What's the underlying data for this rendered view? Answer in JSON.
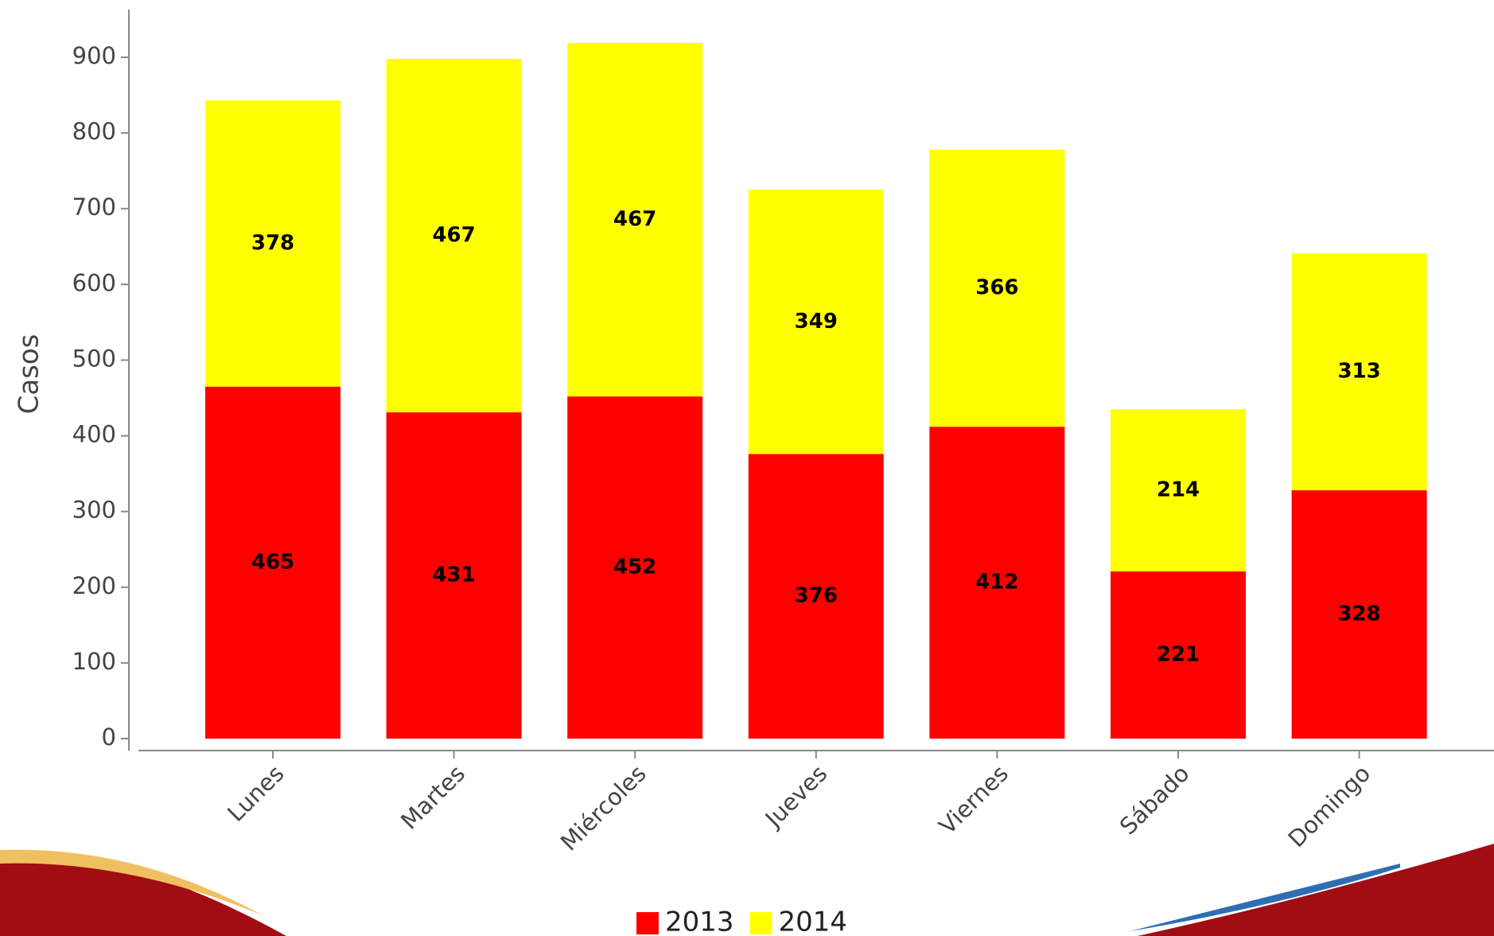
{
  "chart_data": {
    "type": "stacked_bar",
    "y_label": "Casos",
    "categories": [
      "Lunes",
      "Martes",
      "Miércoles",
      "Jueves",
      "Viernes",
      "Sábado",
      "Domingo"
    ],
    "series": [
      {
        "name": "2013",
        "color": "#ff0000",
        "values": [
          465,
          431,
          452,
          376,
          412,
          221,
          328
        ]
      },
      {
        "name": "2014",
        "color": "#ffff00",
        "values": [
          378,
          467,
          467,
          349,
          366,
          214,
          313
        ]
      }
    ],
    "ylim": [
      0,
      960
    ],
    "yticks": [
      0,
      100,
      200,
      300,
      400,
      500,
      600,
      700,
      800,
      900
    ],
    "grid": false
  }
}
